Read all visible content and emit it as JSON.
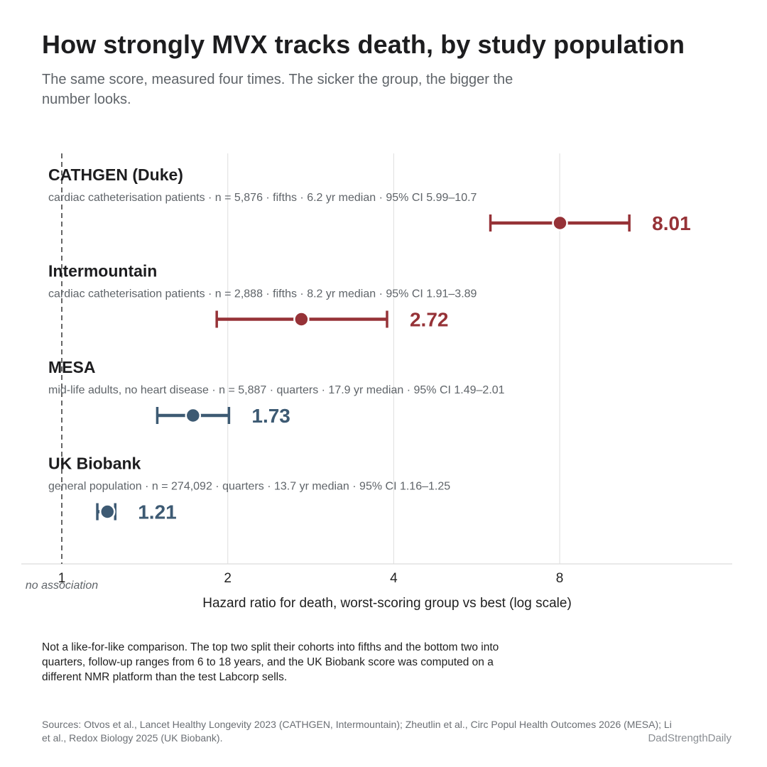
{
  "title": "How strongly MVX tracks death, by study population",
  "subtitle": "The same score, measured four times. The sicker the group, the bigger the number looks.",
  "footnote": "Not a like-for-like comparison. The top two split their cohorts into fifths and the bottom two into quarters, follow-up ranges from 6 to 18 years, and the UK Biobank score was computed on a different NMR platform than the test Labcorp sells.",
  "sources": "Sources: Otvos et al., Lancet Healthy Longevity 2023 (CATHGEN, Intermountain); Zheutlin et al., Circ Popul Health Outcomes 2026 (MESA); Li et al., Redox Biology 2025 (UK Biobank).",
  "brand": "DadStrengthDaily",
  "colors": {
    "red": "#963237",
    "blue": "#3d5a73",
    "grid": "#e3e3e3",
    "reference": "#555555",
    "title": "#1d1d1f",
    "meta": "#5f6469"
  },
  "chart_data": {
    "type": "forest",
    "x_scale": "log2",
    "xlim": [
      1,
      16
    ],
    "x_ticks": [
      1,
      2,
      4,
      8
    ],
    "x_tick_labels": [
      "1",
      "2",
      "4",
      "8"
    ],
    "xlabel": "Hazard ratio for death, worst-scoring group vs best  (log scale)",
    "reference_value": 1,
    "reference_label": "no association",
    "separator": "·",
    "studies": [
      {
        "name": "CATHGEN (Duke)",
        "meta": [
          "cardiac catheterisation patients",
          "n = 5,876",
          "fifths",
          "6.2 yr median",
          "95% CI 5.99–10.7"
        ],
        "hr": 8.01,
        "hr_label": "8.01",
        "ci_low": 5.99,
        "ci_high": 10.7,
        "color": "#963237"
      },
      {
        "name": "Intermountain",
        "meta": [
          "cardiac catheterisation patients",
          "n = 2,888",
          "fifths",
          "8.2 yr median",
          "95% CI 1.91–3.89"
        ],
        "hr": 2.72,
        "hr_label": "2.72",
        "ci_low": 1.91,
        "ci_high": 3.89,
        "color": "#963237"
      },
      {
        "name": "MESA",
        "meta": [
          "mid-life adults, no heart disease",
          "n = 5,887",
          "quarters",
          "17.9 yr median",
          "95% CI 1.49–2.01"
        ],
        "hr": 1.73,
        "hr_label": "1.73",
        "ci_low": 1.49,
        "ci_high": 2.01,
        "color": "#3d5a73"
      },
      {
        "name": "UK Biobank",
        "meta": [
          "general population",
          "n = 274,092",
          "quarters",
          "13.7 yr median",
          "95% CI 1.16–1.25"
        ],
        "hr": 1.21,
        "hr_label": "1.21",
        "ci_low": 1.16,
        "ci_high": 1.25,
        "color": "#3d5a73"
      }
    ]
  }
}
